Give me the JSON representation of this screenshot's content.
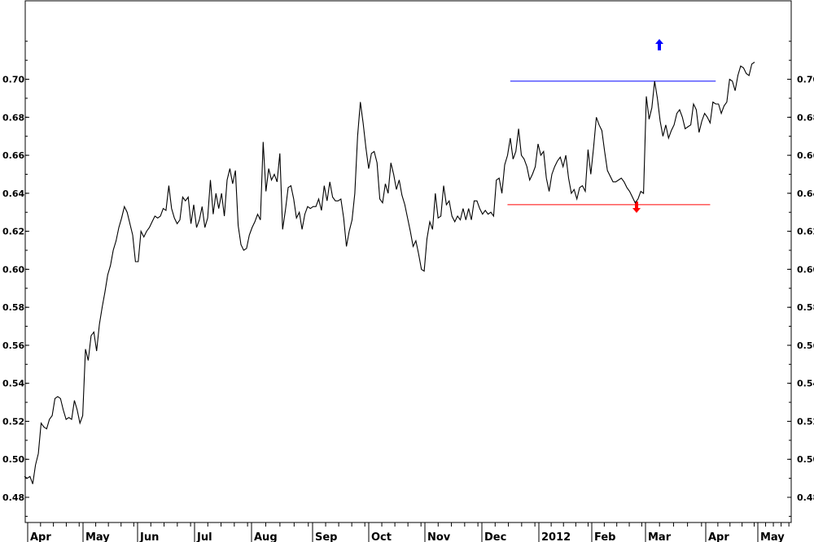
{
  "chart_data": {
    "type": "line",
    "title": "",
    "xlabel": "",
    "ylabel": "",
    "ylim": [
      0.47,
      0.73
    ],
    "y_ticks": [
      "0.48",
      "0.50",
      "0.52",
      "0.54",
      "0.56",
      "0.58",
      "0.60",
      "0.62",
      "0.64",
      "0.66",
      "0.68",
      "0.70"
    ],
    "x_months": [
      "Apr",
      "May",
      "Jun",
      "Jul",
      "Aug",
      "Sep",
      "Oct",
      "Nov",
      "Dec",
      "2012",
      "Feb",
      "Mar",
      "Apr",
      "May"
    ],
    "grid": false,
    "series": [
      {
        "color": "#000000",
        "points": [
          [
            0.0,
            0.491
          ],
          [
            1.0,
            0.49
          ],
          [
            2.0,
            0.491
          ],
          [
            3.0,
            0.487
          ],
          [
            4.0,
            0.497
          ],
          [
            5.0,
            0.503
          ],
          [
            6.0,
            0.519
          ],
          [
            7.0,
            0.517
          ],
          [
            8.0,
            0.516
          ],
          [
            9.0,
            0.521
          ],
          [
            10.0,
            0.523
          ],
          [
            11.0,
            0.532
          ],
          [
            12.0,
            0.533
          ],
          [
            13.0,
            0.532
          ],
          [
            14.0,
            0.526
          ],
          [
            15.0,
            0.521
          ],
          [
            16.0,
            0.522
          ],
          [
            17.0,
            0.521
          ],
          [
            18.0,
            0.531
          ],
          [
            19.0,
            0.526
          ],
          [
            20.0,
            0.519
          ],
          [
            21.0,
            0.523
          ],
          [
            22.0,
            0.558
          ],
          [
            23.0,
            0.552
          ],
          [
            24.0,
            0.565
          ],
          [
            25.0,
            0.567
          ],
          [
            26.0,
            0.557
          ],
          [
            27.0,
            0.571
          ],
          [
            28.0,
            0.58
          ],
          [
            29.0,
            0.588
          ],
          [
            30.0,
            0.597
          ],
          [
            31.0,
            0.602
          ],
          [
            32.0,
            0.61
          ],
          [
            33.0,
            0.615
          ],
          [
            34.0,
            0.622
          ],
          [
            35.0,
            0.627
          ],
          [
            36.0,
            0.633
          ],
          [
            37.0,
            0.63
          ],
          [
            38.0,
            0.624
          ],
          [
            39.0,
            0.618
          ],
          [
            40.0,
            0.604
          ],
          [
            41.0,
            0.604
          ],
          [
            42.0,
            0.62
          ],
          [
            43.0,
            0.617
          ],
          [
            44.0,
            0.62
          ],
          [
            45.0,
            0.622
          ],
          [
            46.0,
            0.625
          ],
          [
            47.0,
            0.628
          ],
          [
            48.0,
            0.627
          ],
          [
            49.0,
            0.628
          ],
          [
            50.0,
            0.632
          ],
          [
            51.0,
            0.631
          ],
          [
            52.0,
            0.644
          ],
          [
            53.0,
            0.632
          ],
          [
            54.0,
            0.627
          ],
          [
            55.0,
            0.624
          ],
          [
            56.0,
            0.626
          ],
          [
            57.0,
            0.638
          ],
          [
            58.0,
            0.636
          ],
          [
            59.0,
            0.638
          ],
          [
            60.0,
            0.624
          ],
          [
            61.0,
            0.634
          ],
          [
            62.0,
            0.622
          ],
          [
            63.0,
            0.626
          ],
          [
            64.0,
            0.633
          ],
          [
            65.0,
            0.622
          ],
          [
            66.0,
            0.627
          ],
          [
            67.0,
            0.647
          ],
          [
            68.0,
            0.629
          ],
          [
            69.0,
            0.64
          ],
          [
            70.0,
            0.632
          ],
          [
            71.0,
            0.64
          ],
          [
            72.0,
            0.628
          ],
          [
            73.0,
            0.647
          ],
          [
            74.0,
            0.653
          ],
          [
            75.0,
            0.645
          ],
          [
            76.0,
            0.652
          ],
          [
            77.0,
            0.623
          ],
          [
            78.0,
            0.613
          ],
          [
            79.0,
            0.61
          ],
          [
            80.0,
            0.611
          ],
          [
            81.0,
            0.618
          ],
          [
            82.0,
            0.622
          ],
          [
            83.0,
            0.625
          ],
          [
            84.0,
            0.629
          ],
          [
            85.0,
            0.626
          ],
          [
            86.0,
            0.667
          ],
          [
            87.0,
            0.641
          ],
          [
            88.0,
            0.653
          ],
          [
            89.0,
            0.647
          ],
          [
            90.0,
            0.65
          ],
          [
            91.0,
            0.646
          ],
          [
            92.0,
            0.661
          ],
          [
            93.0,
            0.621
          ],
          [
            94.0,
            0.631
          ],
          [
            95.0,
            0.643
          ],
          [
            96.0,
            0.644
          ],
          [
            97.0,
            0.637
          ],
          [
            98.0,
            0.627
          ],
          [
            99.0,
            0.63
          ],
          [
            100.0,
            0.621
          ],
          [
            101.0,
            0.629
          ],
          [
            102.0,
            0.633
          ],
          [
            103.0,
            0.632
          ],
          [
            104.0,
            0.633
          ],
          [
            105.0,
            0.633
          ],
          [
            106.0,
            0.637
          ],
          [
            107.0,
            0.631
          ],
          [
            108.0,
            0.644
          ],
          [
            109.0,
            0.636
          ],
          [
            110.0,
            0.646
          ],
          [
            111.0,
            0.638
          ],
          [
            112.0,
            0.636
          ],
          [
            113.0,
            0.636
          ],
          [
            114.0,
            0.637
          ],
          [
            115.0,
            0.627
          ],
          [
            116.0,
            0.612
          ],
          [
            117.0,
            0.62
          ],
          [
            118.0,
            0.626
          ],
          [
            119.0,
            0.64
          ],
          [
            120.0,
            0.67
          ],
          [
            121.0,
            0.688
          ],
          [
            122.0,
            0.677
          ],
          [
            123.0,
            0.664
          ],
          [
            124.0,
            0.653
          ],
          [
            125.0,
            0.661
          ],
          [
            126.0,
            0.662
          ],
          [
            127.0,
            0.656
          ],
          [
            128.0,
            0.637
          ],
          [
            129.0,
            0.635
          ],
          [
            130.0,
            0.645
          ],
          [
            131.0,
            0.64
          ],
          [
            132.0,
            0.656
          ],
          [
            133.0,
            0.65
          ],
          [
            134.0,
            0.642
          ],
          [
            135.0,
            0.647
          ],
          [
            136.0,
            0.639
          ],
          [
            137.0,
            0.634
          ],
          [
            138.0,
            0.627
          ],
          [
            139.0,
            0.62
          ],
          [
            140.0,
            0.612
          ],
          [
            141.0,
            0.615
          ],
          [
            142.0,
            0.608
          ],
          [
            143.0,
            0.6
          ],
          [
            144.0,
            0.599
          ],
          [
            145.0,
            0.616
          ],
          [
            146.0,
            0.625
          ],
          [
            147.0,
            0.621
          ],
          [
            148.0,
            0.64
          ],
          [
            149.0,
            0.627
          ],
          [
            150.0,
            0.628
          ],
          [
            151.0,
            0.644
          ],
          [
            152.0,
            0.634
          ],
          [
            153.0,
            0.636
          ],
          [
            154.0,
            0.628
          ],
          [
            155.0,
            0.625
          ],
          [
            156.0,
            0.628
          ],
          [
            157.0,
            0.626
          ],
          [
            158.0,
            0.632
          ],
          [
            159.0,
            0.626
          ],
          [
            160.0,
            0.632
          ],
          [
            161.0,
            0.626
          ],
          [
            162.0,
            0.636
          ],
          [
            163.0,
            0.636
          ],
          [
            164.0,
            0.632
          ],
          [
            165.0,
            0.629
          ],
          [
            166.0,
            0.631
          ],
          [
            167.0,
            0.629
          ],
          [
            168.0,
            0.63
          ],
          [
            169.0,
            0.628
          ],
          [
            170.0,
            0.647
          ],
          [
            171.0,
            0.648
          ],
          [
            172.0,
            0.64
          ],
          [
            173.0,
            0.655
          ],
          [
            174.0,
            0.66
          ],
          [
            175.0,
            0.669
          ],
          [
            176.0,
            0.658
          ],
          [
            177.0,
            0.662
          ],
          [
            178.0,
            0.674
          ],
          [
            179.0,
            0.66
          ],
          [
            180.0,
            0.658
          ],
          [
            181.0,
            0.654
          ],
          [
            182.0,
            0.647
          ],
          [
            183.0,
            0.65
          ],
          [
            184.0,
            0.654
          ],
          [
            185.0,
            0.666
          ],
          [
            186.0,
            0.66
          ],
          [
            187.0,
            0.662
          ],
          [
            188.0,
            0.648
          ],
          [
            189.0,
            0.641
          ],
          [
            190.0,
            0.65
          ],
          [
            191.0,
            0.654
          ],
          [
            192.0,
            0.657
          ],
          [
            193.0,
            0.659
          ],
          [
            194.0,
            0.654
          ],
          [
            195.0,
            0.66
          ],
          [
            196.0,
            0.648
          ],
          [
            197.0,
            0.64
          ],
          [
            198.0,
            0.642
          ],
          [
            199.0,
            0.637
          ],
          [
            200.0,
            0.643
          ],
          [
            201.0,
            0.644
          ],
          [
            202.0,
            0.641
          ],
          [
            203.0,
            0.663
          ],
          [
            204.0,
            0.65
          ],
          [
            205.0,
            0.664
          ],
          [
            206.0,
            0.68
          ],
          [
            207.0,
            0.676
          ],
          [
            208.0,
            0.673
          ],
          [
            209.0,
            0.662
          ],
          [
            210.0,
            0.652
          ],
          [
            211.0,
            0.649
          ],
          [
            212.0,
            0.646
          ],
          [
            213.0,
            0.646
          ],
          [
            214.0,
            0.647
          ],
          [
            215.0,
            0.648
          ],
          [
            216.0,
            0.646
          ],
          [
            217.0,
            0.643
          ],
          [
            218.0,
            0.641
          ],
          [
            219.0,
            0.638
          ],
          [
            220.0,
            0.635
          ],
          [
            221.0,
            0.637
          ],
          [
            222.0,
            0.641
          ],
          [
            223.0,
            0.64
          ],
          [
            224.0,
            0.691
          ],
          [
            225.0,
            0.679
          ],
          [
            226.0,
            0.685
          ],
          [
            227.0,
            0.699
          ],
          [
            228.0,
            0.69
          ],
          [
            229.0,
            0.678
          ],
          [
            230.0,
            0.67
          ],
          [
            231.0,
            0.676
          ],
          [
            232.0,
            0.669
          ],
          [
            233.0,
            0.673
          ],
          [
            234.0,
            0.676
          ],
          [
            235.0,
            0.682
          ],
          [
            236.0,
            0.684
          ],
          [
            237.0,
            0.68
          ],
          [
            238.0,
            0.674
          ],
          [
            239.0,
            0.675
          ],
          [
            240.0,
            0.676
          ],
          [
            241.0,
            0.687
          ],
          [
            242.0,
            0.684
          ],
          [
            243.0,
            0.672
          ],
          [
            244.0,
            0.678
          ],
          [
            245.0,
            0.682
          ],
          [
            246.0,
            0.68
          ],
          [
            247.0,
            0.677
          ],
          [
            248.0,
            0.688
          ],
          [
            249.0,
            0.687
          ],
          [
            250.0,
            0.687
          ],
          [
            251.0,
            0.682
          ],
          [
            252.0,
            0.686
          ],
          [
            253.0,
            0.688
          ],
          [
            254.0,
            0.7
          ],
          [
            255.0,
            0.699
          ],
          [
            256.0,
            0.694
          ],
          [
            257.0,
            0.702
          ],
          [
            258.0,
            0.707
          ],
          [
            259.0,
            0.706
          ],
          [
            260.0,
            0.703
          ],
          [
            261.0,
            0.702
          ],
          [
            262.0,
            0.708
          ],
          [
            263.0,
            0.709
          ]
        ]
      }
    ],
    "support_line": {
      "value": 0.634,
      "x_start": 174,
      "x_end": 247,
      "color": "#ff0000",
      "marker": "down-arrow"
    },
    "resistance_line": {
      "value": 0.699,
      "x_start": 175,
      "x_end": 249,
      "color": "#0000ff",
      "marker": "up-arrow"
    }
  }
}
